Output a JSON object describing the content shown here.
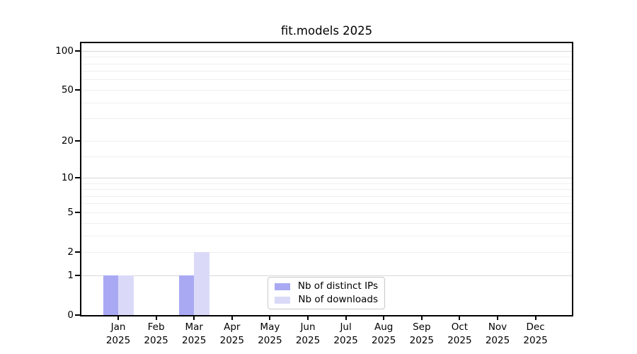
{
  "chart_data": {
    "type": "bar",
    "title": "fit.models 2025",
    "categories": [
      "Jan",
      "Feb",
      "Mar",
      "Apr",
      "May",
      "Jun",
      "Jul",
      "Aug",
      "Sep",
      "Oct",
      "Nov",
      "Dec"
    ],
    "x_year_label": "2025",
    "series": [
      {
        "name": "Nb of distinct IPs",
        "color": "#a9a9f3",
        "values": [
          1,
          0,
          1,
          0,
          0,
          0,
          0,
          0,
          0,
          0,
          0,
          0
        ]
      },
      {
        "name": "Nb of downloads",
        "color": "#dadaf8",
        "values": [
          1,
          0,
          2,
          0,
          0,
          0,
          0,
          0,
          0,
          0,
          0,
          0
        ]
      }
    ],
    "y_axis": {
      "scale": "log1p",
      "tick_values": [
        0,
        1,
        2,
        5,
        10,
        20,
        50,
        100
      ],
      "tick_labels": [
        "0",
        "1",
        "2",
        "5",
        "10",
        "20",
        "50",
        "100"
      ],
      "max": 115
    },
    "grid": {
      "major_values": [
        1,
        10,
        100
      ],
      "minor_values": [
        2,
        3,
        4,
        5,
        6,
        7,
        8,
        9,
        15,
        20,
        30,
        40,
        50,
        60,
        70,
        80,
        90
      ],
      "major_color": "#d8d8d8",
      "minor_color": "#efefef"
    },
    "legend_position": "bottom-center",
    "background_color": "#ffffff",
    "axis_color": "#000000"
  }
}
